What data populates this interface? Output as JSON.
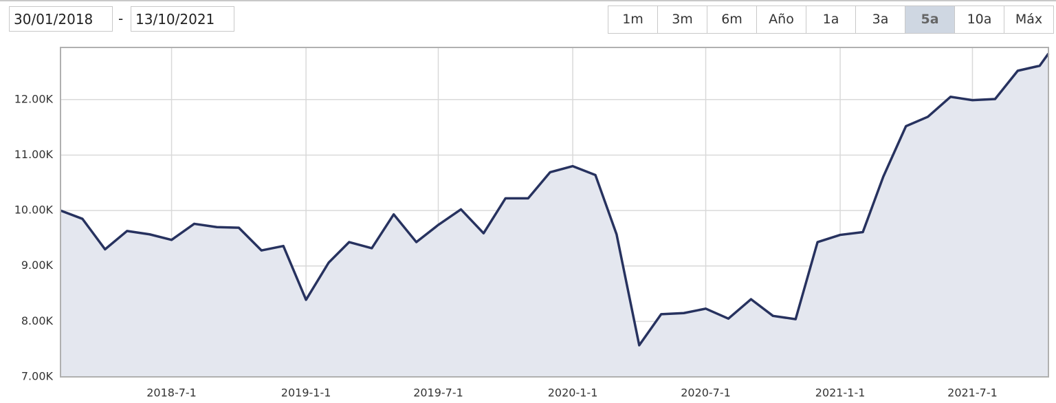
{
  "date_range": {
    "from": "30/01/2018",
    "separator": "-",
    "to": "13/10/2021"
  },
  "range_buttons": {
    "items": [
      "1m",
      "3m",
      "6m",
      "Año",
      "1a",
      "3a",
      "5a",
      "10a",
      "Máx"
    ],
    "active": 6
  },
  "chart_data": {
    "type": "area",
    "x": [
      "2018-01-30",
      "2018-03-01",
      "2018-04-01",
      "2018-05-01",
      "2018-06-01",
      "2018-07-01",
      "2018-08-01",
      "2018-09-01",
      "2018-10-01",
      "2018-11-01",
      "2018-12-01",
      "2019-01-01",
      "2019-02-01",
      "2019-03-01",
      "2019-04-01",
      "2019-05-01",
      "2019-06-01",
      "2019-07-01",
      "2019-08-01",
      "2019-09-01",
      "2019-10-01",
      "2019-11-01",
      "2019-12-01",
      "2020-01-01",
      "2020-02-01",
      "2020-03-01",
      "2020-04-01",
      "2020-05-01",
      "2020-06-01",
      "2020-07-01",
      "2020-08-01",
      "2020-09-01",
      "2020-10-01",
      "2020-11-01",
      "2020-12-01",
      "2021-01-01",
      "2021-02-01",
      "2021-03-01",
      "2021-04-01",
      "2021-05-01",
      "2021-06-01",
      "2021-07-01",
      "2021-08-01",
      "2021-09-01",
      "2021-10-01",
      "2021-10-13"
    ],
    "series": [
      {
        "color": "#27325f",
        "fill": "#e4e7ef",
        "values": [
          10000,
          9850,
          9300,
          9630,
          9570,
          9470,
          9760,
          9700,
          9690,
          9280,
          9360,
          8390,
          9060,
          9430,
          9320,
          9930,
          9430,
          9740,
          10020,
          9590,
          10220,
          10220,
          10690,
          10800,
          10640,
          9570,
          7570,
          8130,
          8150,
          8230,
          8050,
          8400,
          8100,
          8040,
          9430,
          9560,
          9610,
          10610,
          11520,
          11690,
          12050,
          11990,
          12010,
          12520,
          12610,
          12830
        ]
      }
    ],
    "xlim": [
      "2018-01-30",
      "2021-10-13"
    ],
    "xticks": [
      {
        "value": "2018-07-01",
        "label": "2018-7-1"
      },
      {
        "value": "2019-01-01",
        "label": "2019-1-1"
      },
      {
        "value": "2019-07-01",
        "label": "2019-7-1"
      },
      {
        "value": "2020-01-01",
        "label": "2020-1-1"
      },
      {
        "value": "2020-07-01",
        "label": "2020-7-1"
      },
      {
        "value": "2021-01-01",
        "label": "2021-1-1"
      },
      {
        "value": "2021-07-01",
        "label": "2021-7-1"
      }
    ],
    "ylim": [
      7000,
      12940
    ],
    "yticks": [
      {
        "value": 7000,
        "label": "7.00K"
      },
      {
        "value": 8000,
        "label": "8.00K"
      },
      {
        "value": 9000,
        "label": "9.00K"
      },
      {
        "value": 10000,
        "label": "10.00K"
      },
      {
        "value": 11000,
        "label": "11.00K"
      },
      {
        "value": 12000,
        "label": "12.00K"
      }
    ],
    "grid": true
  }
}
